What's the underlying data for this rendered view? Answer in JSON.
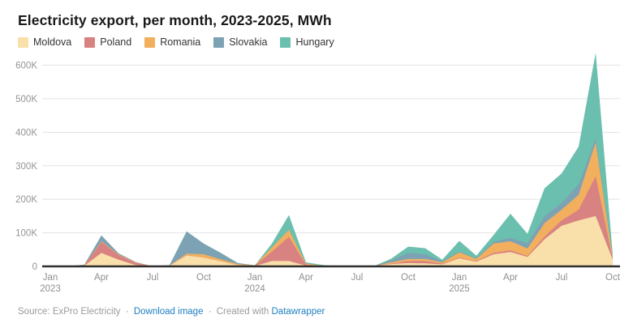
{
  "header": {
    "title": "Electricity export, per month, 2023-2025, MWh"
  },
  "legend": [
    {
      "label": "Moldova",
      "color": "#f9dfa9"
    },
    {
      "label": "Poland",
      "color": "#d98282"
    },
    {
      "label": "Romania",
      "color": "#f2b05e"
    },
    {
      "label": "Slovakia",
      "color": "#7da2b3"
    },
    {
      "label": "Hungary",
      "color": "#6bbfae"
    }
  ],
  "footer": {
    "source_label": "Source:",
    "source_name": "ExPro Electricity",
    "dot": "·",
    "download_link": "Download image",
    "created_with": "Created with",
    "tool_link": "Datawrapper"
  },
  "chart_data": {
    "type": "area",
    "stacked": true,
    "title": "Electricity export, per month, 2023-2025, MWh",
    "unit": "MWh",
    "grid": true,
    "legend_position": "top",
    "ylim": [
      0,
      650000
    ],
    "y_ticks": [
      {
        "value": 0,
        "label": "0"
      },
      {
        "value": 100000,
        "label": "100K"
      },
      {
        "value": 200000,
        "label": "200K"
      },
      {
        "value": 300000,
        "label": "300K"
      },
      {
        "value": 400000,
        "label": "400K"
      },
      {
        "value": 500000,
        "label": "500K"
      },
      {
        "value": 600000,
        "label": "600K"
      }
    ],
    "x": [
      "Jan 2023",
      "Feb 2023",
      "Mar 2023",
      "Apr 2023",
      "May 2023",
      "Jun 2023",
      "Jul 2023",
      "Aug 2023",
      "Sep 2023",
      "Oct 2023",
      "Nov 2023",
      "Dec 2023",
      "Jan 2024",
      "Feb 2024",
      "Mar 2024",
      "Apr 2024",
      "May 2024",
      "Jun 2024",
      "Jul 2024",
      "Aug 2024",
      "Sep 2024",
      "Oct 2024",
      "Nov 2024",
      "Dec 2024",
      "Jan 2025",
      "Feb 2025",
      "Mar 2025",
      "Apr 2025",
      "May 2025",
      "Jun 2025",
      "Jul 2025",
      "Aug 2025",
      "Sep 2025",
      "Oct 2025"
    ],
    "x_ticks": [
      {
        "i": 0,
        "label": "Jan",
        "year": "2023"
      },
      {
        "i": 3,
        "label": "Apr"
      },
      {
        "i": 6,
        "label": "Jul"
      },
      {
        "i": 9,
        "label": "Oct"
      },
      {
        "i": 12,
        "label": "Jan",
        "year": "2024"
      },
      {
        "i": 15,
        "label": "Apr"
      },
      {
        "i": 18,
        "label": "Jul"
      },
      {
        "i": 21,
        "label": "Oct"
      },
      {
        "i": 24,
        "label": "Jan",
        "year": "2025"
      },
      {
        "i": 27,
        "label": "Apr"
      },
      {
        "i": 30,
        "label": "Jul"
      },
      {
        "i": 33,
        "label": "Oct"
      }
    ],
    "series": [
      {
        "name": "Moldova",
        "color": "#f9dfa9",
        "values": [
          0,
          0,
          2000,
          40000,
          20000,
          4000,
          0,
          2000,
          33000,
          26000,
          15000,
          4000,
          1000,
          16000,
          16000,
          2000,
          1000,
          0,
          0,
          1000,
          7000,
          10000,
          9000,
          6000,
          24000,
          14000,
          36000,
          43000,
          28000,
          81000,
          121000,
          137000,
          150000,
          20000
        ]
      },
      {
        "name": "Poland",
        "color": "#d98282",
        "values": [
          0,
          0,
          1000,
          33000,
          14000,
          7000,
          0,
          0,
          1000,
          0,
          0,
          0,
          1000,
          28000,
          72000,
          3000,
          0,
          0,
          0,
          0,
          1000,
          6000,
          7000,
          2000,
          2000,
          2000,
          4000,
          5000,
          3000,
          8000,
          16000,
          32000,
          119000,
          2000
        ]
      },
      {
        "name": "Romania",
        "color": "#f2b05e",
        "values": [
          0,
          0,
          1000,
          2000,
          2000,
          1000,
          0,
          1000,
          4000,
          10000,
          6000,
          3000,
          1000,
          12000,
          21000,
          3000,
          1000,
          0,
          0,
          0,
          4000,
          6000,
          6000,
          4000,
          16000,
          6000,
          28000,
          27000,
          22000,
          40000,
          32000,
          44000,
          100000,
          4000
        ]
      },
      {
        "name": "Slovakia",
        "color": "#7da2b3",
        "values": [
          0,
          0,
          1000,
          17000,
          3000,
          1000,
          0,
          1000,
          66000,
          32000,
          19000,
          3000,
          0,
          0,
          0,
          0,
          0,
          0,
          0,
          0,
          6000,
          18000,
          14000,
          3000,
          2000,
          2000,
          5000,
          10000,
          16000,
          20000,
          20000,
          32000,
          12000,
          2000
        ]
      },
      {
        "name": "Hungary",
        "color": "#6bbfae",
        "values": [
          0,
          0,
          0,
          0,
          0,
          0,
          0,
          0,
          0,
          0,
          0,
          0,
          0,
          12000,
          44000,
          4000,
          2000,
          0,
          0,
          0,
          5000,
          19000,
          18000,
          5000,
          32000,
          8000,
          20000,
          72000,
          28000,
          84000,
          88000,
          112000,
          256000,
          8000
        ]
      }
    ]
  }
}
